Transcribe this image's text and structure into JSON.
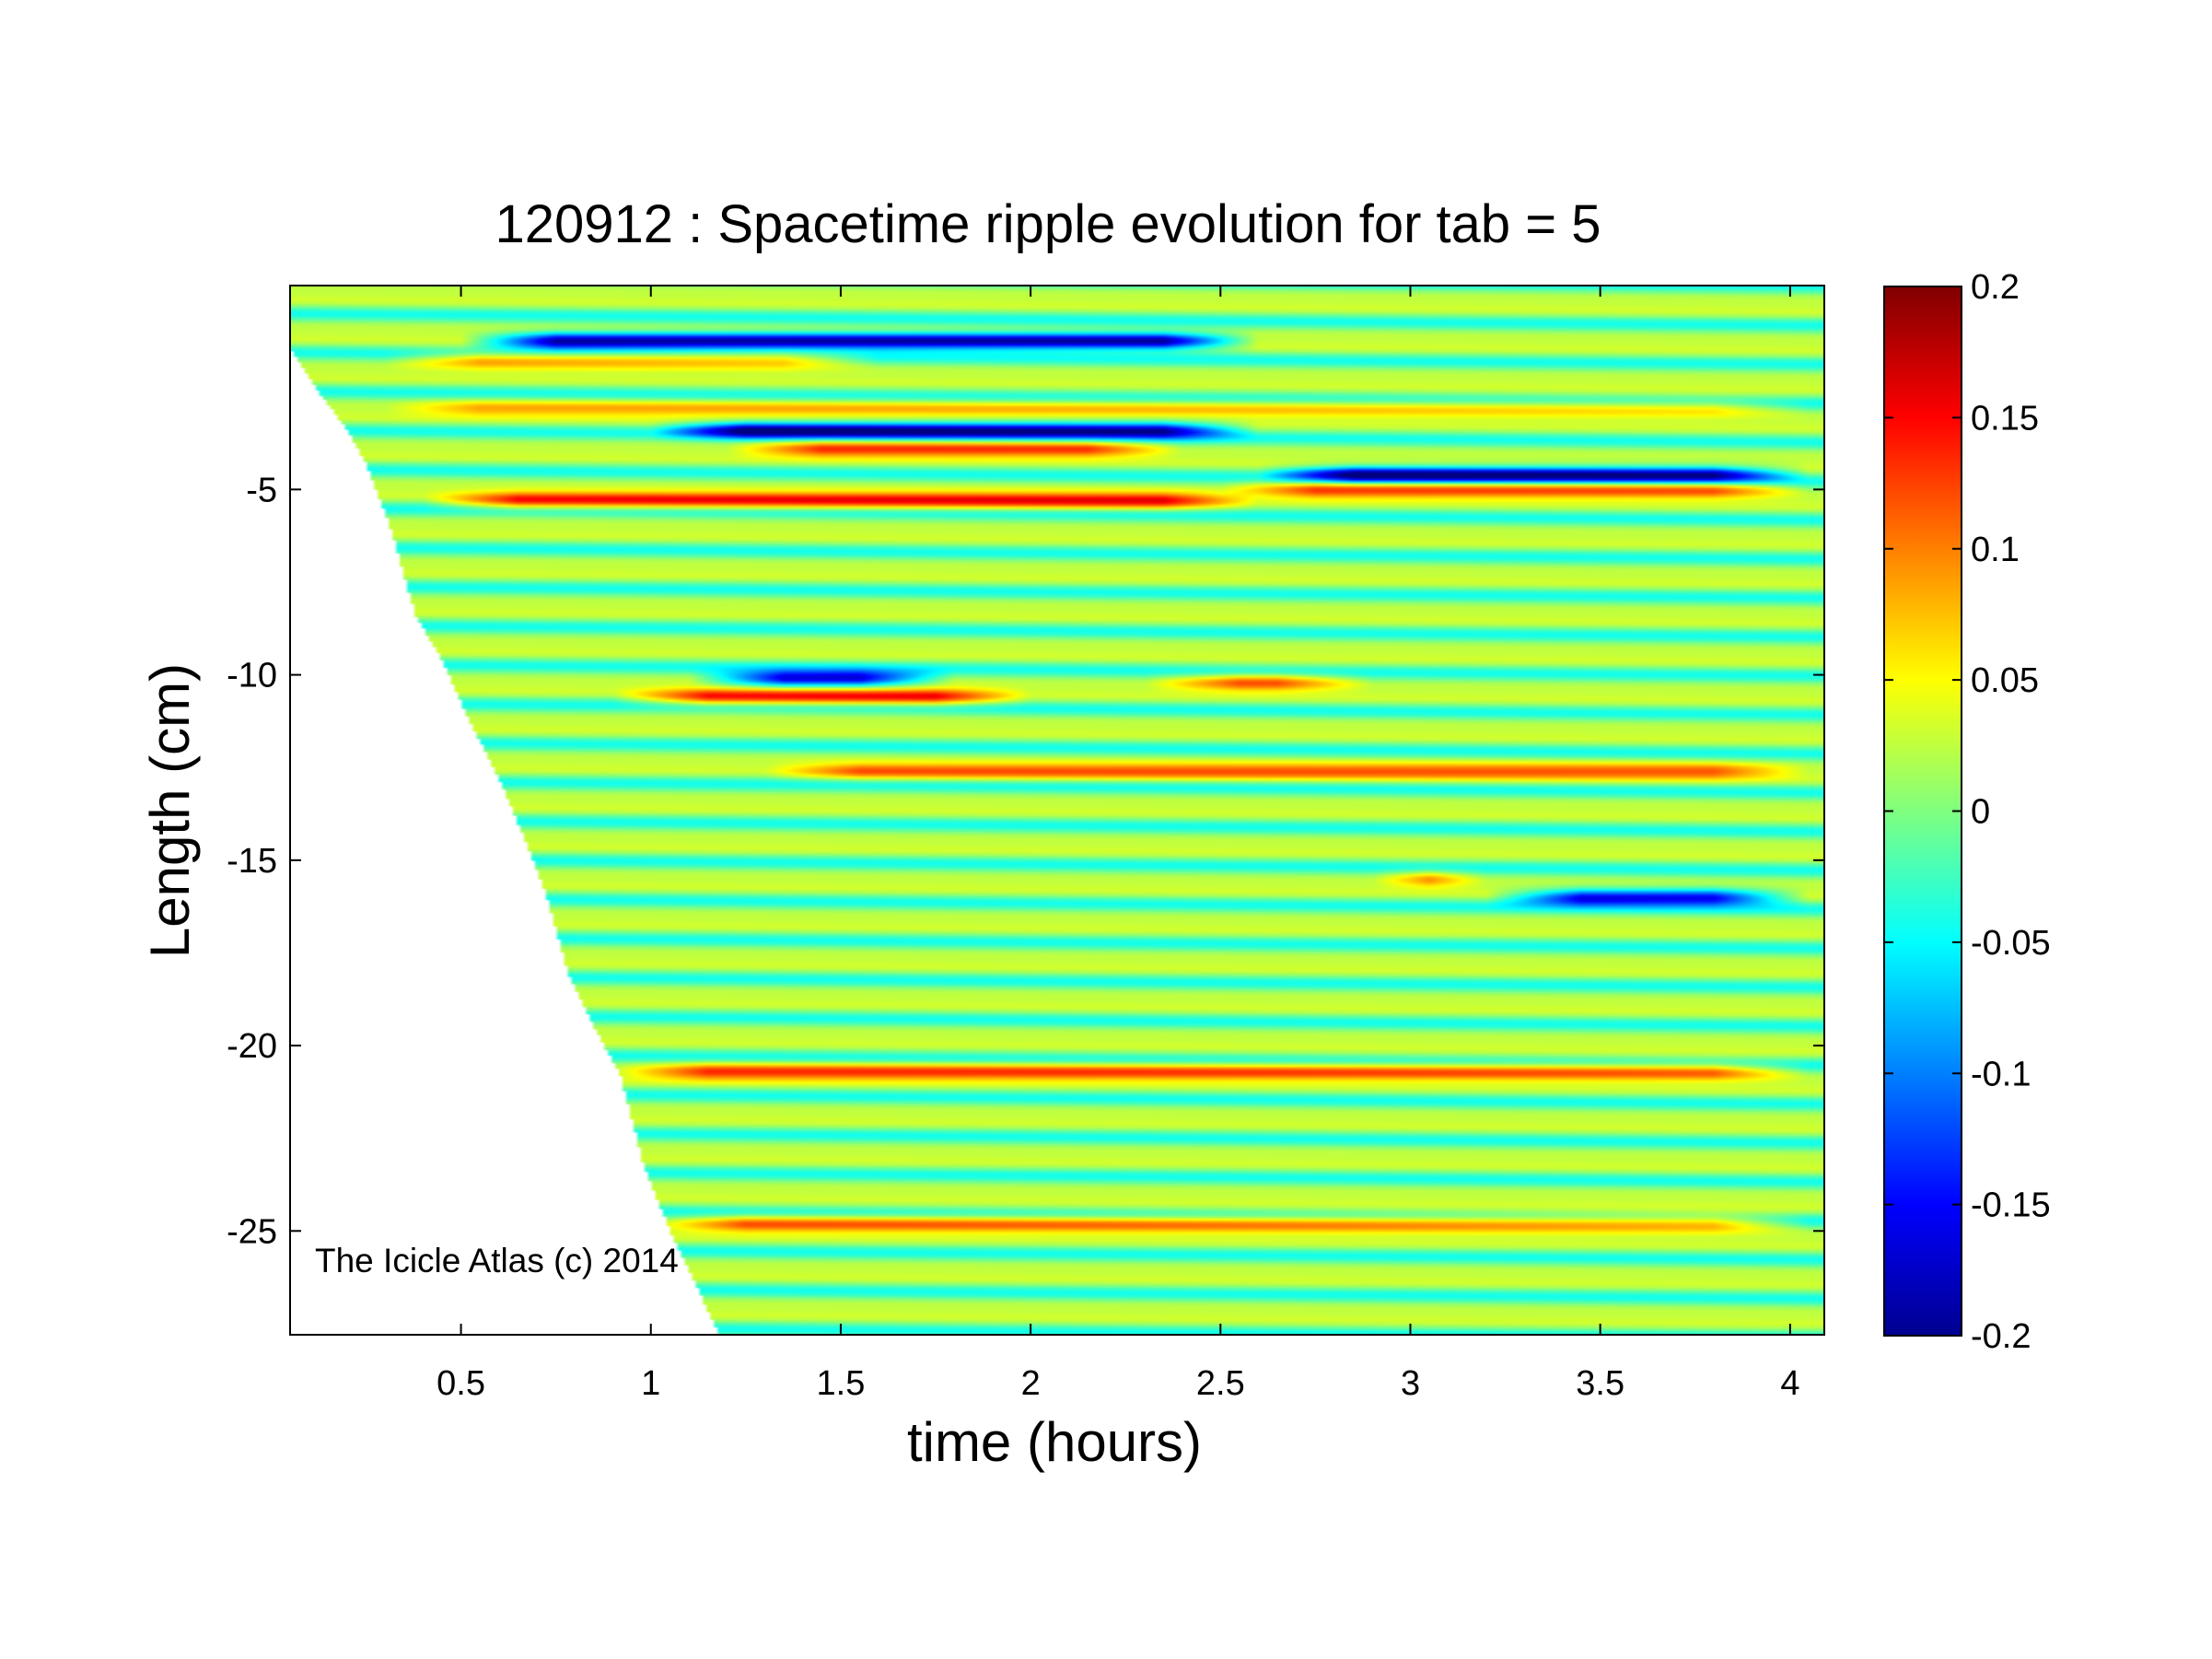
{
  "chart_data": {
    "type": "heatmap",
    "title": "120912 : Spacetime ripple evolution for tab = 5",
    "xlabel": "time (hours)",
    "ylabel": "Length (cm)",
    "xlim": [
      0.05,
      4.09
    ],
    "ylim": [
      -27.8,
      0.5
    ],
    "xticks": [
      0.5,
      1,
      1.5,
      2,
      2.5,
      3,
      3.5,
      4
    ],
    "xtick_labels": [
      "0.5",
      "1",
      "1.5",
      "2",
      "2.5",
      "3",
      "3.5",
      "4"
    ],
    "yticks": [
      -5,
      -10,
      -15,
      -20,
      -25
    ],
    "ytick_labels": [
      "-5",
      "-10",
      "-15",
      "-20",
      "-25"
    ],
    "colorbar": {
      "colormap": "jet",
      "range": [
        -0.2,
        0.2
      ],
      "ticks": [
        0.2,
        0.15,
        0.1,
        0.05,
        0,
        -0.05,
        -0.1,
        -0.15,
        -0.2
      ],
      "tick_labels": [
        "0.2",
        "0.15",
        "0.1",
        "0.05",
        "0",
        "-0.05",
        "-0.1",
        "-0.15",
        "-0.2"
      ]
    },
    "grid": false,
    "ripple_wavelength_cm": 1.05,
    "icicle_growth": {
      "description": "icicle tip length vs time (lower data boundary)",
      "time": [
        0.05,
        0.12,
        0.2,
        0.25,
        0.32,
        0.38,
        0.45,
        0.52,
        0.6,
        0.65,
        0.72,
        0.78,
        0.85,
        0.92,
        0.98,
        1.05,
        1.12,
        1.18
      ],
      "length": [
        -1.2,
        -2.3,
        -3.4,
        -4.3,
        -6.2,
        -8.4,
        -9.6,
        -11.2,
        -12.8,
        -14.0,
        -15.8,
        -18.0,
        -19.5,
        -20.8,
        -23.2,
        -25.0,
        -26.5,
        -27.8
      ]
    },
    "features": [
      {
        "t_start": 0.5,
        "t_end": 2.6,
        "y": -1.0,
        "value": -0.19
      },
      {
        "t_start": 0.3,
        "t_end": 1.6,
        "y": -1.5,
        "value": 0.12
      },
      {
        "t_start": 0.3,
        "t_end": 4.05,
        "y": -2.8,
        "value": 0.09
      },
      {
        "t_start": 1.0,
        "t_end": 2.6,
        "y": -3.4,
        "value": -0.16
      },
      {
        "t_start": 1.2,
        "t_end": 2.4,
        "y": -3.9,
        "value": 0.14
      },
      {
        "t_start": 2.6,
        "t_end": 4.05,
        "y": -4.6,
        "value": -0.16
      },
      {
        "t_start": 2.5,
        "t_end": 4.05,
        "y": -5.0,
        "value": 0.14
      },
      {
        "t_start": 0.4,
        "t_end": 2.6,
        "y": -5.3,
        "value": 0.16
      },
      {
        "t_start": 1.1,
        "t_end": 1.8,
        "y": -10.1,
        "value": -0.15
      },
      {
        "t_start": 0.9,
        "t_end": 2.0,
        "y": -10.6,
        "value": 0.16
      },
      {
        "t_start": 2.3,
        "t_end": 2.9,
        "y": -10.2,
        "value": 0.13
      },
      {
        "t_start": 1.3,
        "t_end": 4.05,
        "y": -12.6,
        "value": 0.12
      },
      {
        "t_start": 2.9,
        "t_end": 3.2,
        "y": -15.5,
        "value": 0.15
      },
      {
        "t_start": 3.2,
        "t_end": 4.05,
        "y": -16.0,
        "value": -0.15
      },
      {
        "t_start": 0.9,
        "t_end": 4.05,
        "y": -20.7,
        "value": 0.14
      },
      {
        "t_start": 1.0,
        "t_end": 4.05,
        "y": -24.8,
        "value": 0.13
      }
    ]
  },
  "annotation": "The Icicle Atlas (c) 2014"
}
